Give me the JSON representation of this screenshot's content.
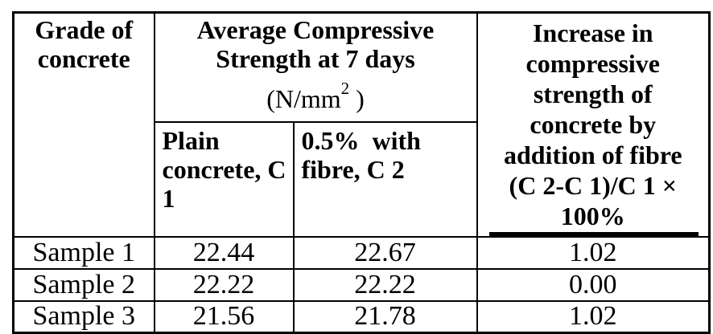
{
  "table": {
    "header": {
      "grade": "Grade of concrete",
      "avg_title": "Average Compressive Strength at 7 days",
      "unit_prefix": "(N/mm",
      "unit_sup": "2",
      "unit_suffix": " )",
      "plain": "Plain concrete, C 1",
      "fibre": "0.5%  with fibre, C 2",
      "increase_lines": [
        "Increase in",
        "compressive",
        "strength of",
        "concrete by",
        "addition of fibre",
        "(C 2-C 1)/C 1 ×",
        "100%"
      ]
    },
    "rows": [
      {
        "label": "Sample 1",
        "plain_c1": "22.44",
        "fibre_c2": "22.67",
        "increase": "1.02"
      },
      {
        "label": "Sample 2",
        "plain_c1": "22.22",
        "fibre_c2": "22.22",
        "increase": "0.00"
      },
      {
        "label": "Sample 3",
        "plain_c1": "21.56",
        "fibre_c2": "21.78",
        "increase": "1.02"
      }
    ],
    "colors": {
      "border": "#000000",
      "text": "#000000",
      "background": "#ffffff"
    }
  }
}
